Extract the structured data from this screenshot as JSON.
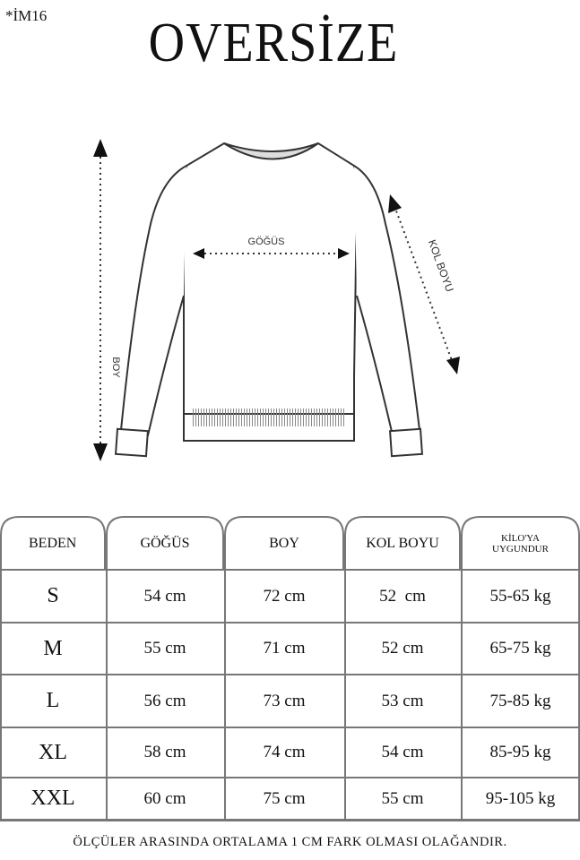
{
  "code": "*İM16",
  "title": "OVERSİZE",
  "diagram": {
    "chest_label": "GÖĞÜS",
    "length_label": "BOY",
    "sleeve_label": "KOL BOYU"
  },
  "table": {
    "headers": [
      "BEDEN",
      "GÖĞÜS",
      "BOY",
      "KOL BOYU",
      "KİLO'YA UYGUNDUR"
    ],
    "header_kilo_line1": "KİLO'YA",
    "header_kilo_line2": "UYGUNDUR",
    "rows": [
      [
        "S",
        "54 cm",
        "72 cm",
        "52  cm",
        "55-65 kg"
      ],
      [
        "M",
        "55 cm",
        "71 cm",
        "52 cm",
        "65-75 kg"
      ],
      [
        "L",
        "56 cm",
        "73 cm",
        "53 cm",
        "75-85 kg"
      ],
      [
        "XL",
        "58 cm",
        "74 cm",
        "54 cm",
        "85-95 kg"
      ],
      [
        "XXL",
        "60 cm",
        "75 cm",
        "55 cm",
        "95-105 kg"
      ]
    ]
  },
  "footer": "ÖLÇÜLER ARASINDA ORTALAMA 1 CM FARK OLMASI OLAĞANDIR."
}
